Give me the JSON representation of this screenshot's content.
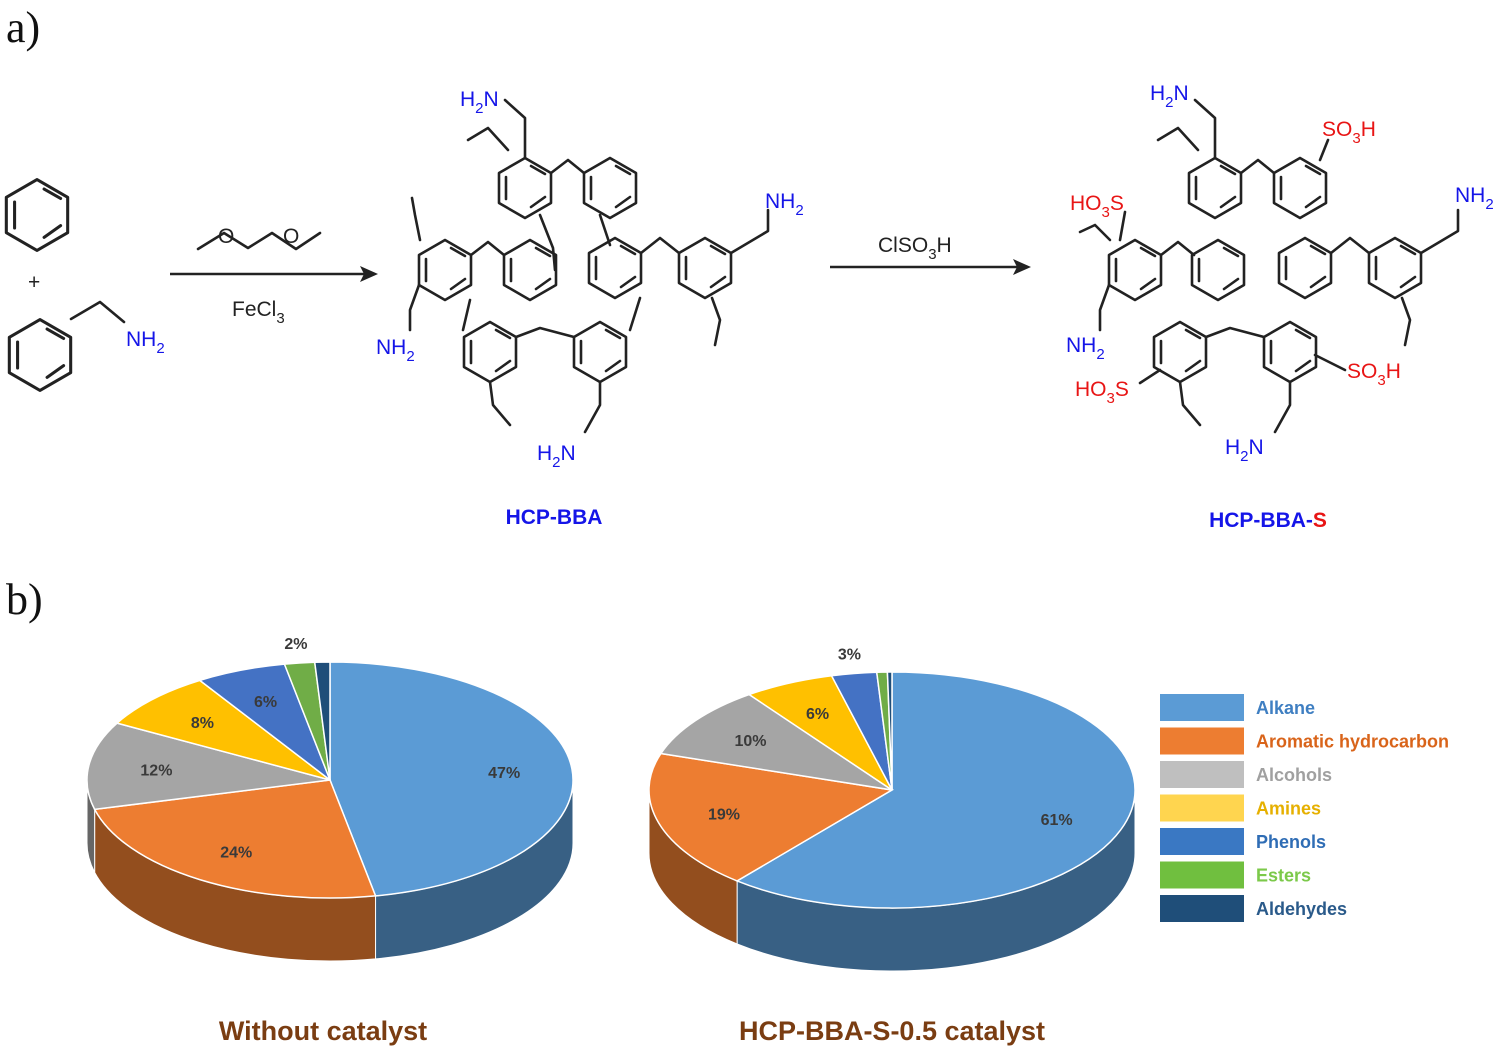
{
  "panels": {
    "a": "a)",
    "b": "b)"
  },
  "scheme": {
    "plus": "+",
    "amine_label": "NH",
    "amine_sub": "2",
    "reagent_1": "FeCl",
    "reagent_1_sub": "3",
    "reagent_2": "ClSO",
    "reagent_2_sub": "3",
    "reagent_2_tail": "H",
    "product_1": "HCP-BBA",
    "product_2_main": "HCP-BBA-",
    "product_2_accent": "S",
    "nh2_main": "NH",
    "h2n_h": "H",
    "h2n_n": "N",
    "sulfo_so": "SO",
    "sulfo_h": "H",
    "sulfo_ho": "HO",
    "sulfo_s": "S",
    "sub_2": "2",
    "sub_3": "3"
  },
  "chart_data": [
    {
      "type": "pie",
      "title": "Without catalyst",
      "categories": [
        "Alkane",
        "Aromatic hydrocarbon",
        "Alcohols",
        "Amines",
        "Phenols",
        "Esters",
        "Aldehydes"
      ],
      "values": [
        47,
        24,
        12,
        8,
        6,
        2,
        1
      ],
      "labels": [
        "47%",
        "24%",
        "12%",
        "8%",
        "6%",
        "2%",
        ""
      ]
    },
    {
      "type": "pie",
      "title": "HCP-BBA-S-0.5 catalyst",
      "categories": [
        "Alkane",
        "Aromatic hydrocarbon",
        "Alcohols",
        "Amines",
        "Phenols",
        "Esters",
        "Aldehydes"
      ],
      "values": [
        61,
        19,
        10,
        6,
        3,
        0.7,
        0.3
      ],
      "labels": [
        "61%",
        "19%",
        "10%",
        "6%",
        "3%",
        "",
        ""
      ]
    }
  ],
  "legend": {
    "placement": "right",
    "items": [
      {
        "label": "Alkane",
        "color": "#5b9bd5",
        "text_color": "#3f7fc2"
      },
      {
        "label": "Aromatic hydrocarbon",
        "color": "#ed7d31",
        "text_color": "#d9641a"
      },
      {
        "label": "Alcohols",
        "color": "#bfbfbf",
        "text_color": "#a0a0a0"
      },
      {
        "label": "Amines",
        "color": "#ffd54f",
        "text_color": "#e6b000"
      },
      {
        "label": "Phenols",
        "color": "#3a78c3",
        "text_color": "#2f6db5"
      },
      {
        "label": "Esters",
        "color": "#70bf3f",
        "text_color": "#7cc94a"
      },
      {
        "label": "Aldehydes",
        "color": "#1f4e79",
        "text_color": "#2a5a8a"
      }
    ]
  },
  "slice_colors": [
    "#5b9bd5",
    "#ed7d31",
    "#a5a5a5",
    "#ffc000",
    "#4472c4",
    "#70ad47",
    "#1f4e79"
  ]
}
